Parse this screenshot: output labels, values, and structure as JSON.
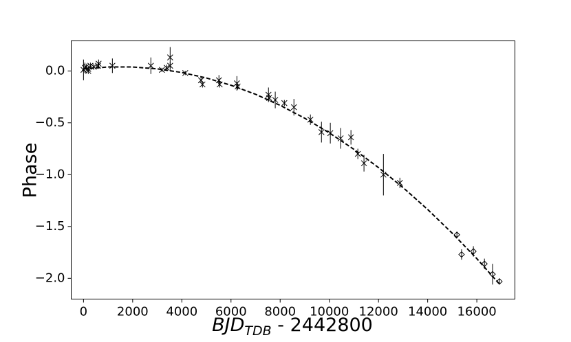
{
  "chart_data": {
    "type": "scatter",
    "ylabel": "Phase",
    "xlabel": {
      "main": "BJD",
      "sub": "TDB",
      "rest": " - 2442800"
    },
    "xlim": [
      -500,
      17550
    ],
    "ylim": [
      -2.2,
      0.29
    ],
    "xticks": [
      0,
      2000,
      4000,
      6000,
      8000,
      10000,
      12000,
      14000,
      16000
    ],
    "yticks": [
      {
        "value": 0,
        "label": "0.0"
      },
      {
        "value": -0.5,
        "label": "−0.5"
      },
      {
        "value": -1,
        "label": "−1.0"
      },
      {
        "value": -1.5,
        "label": "−1.5"
      },
      {
        "value": -2,
        "label": "−2.0"
      }
    ],
    "series": [
      {
        "marker": "x",
        "color": "#000000",
        "x": [
          0,
          55,
          110,
          195,
          280,
          420,
          590,
          195,
          615,
          1175,
          2740,
          3190,
          3385,
          3525,
          3525,
          4140,
          4780,
          4840,
          5510,
          5540,
          6240,
          6270,
          7525,
          7550,
          7800,
          8170,
          8560,
          9230,
          9680,
          10040,
          10460,
          10880,
          11160,
          11410,
          12200,
          12870
        ],
        "values": [
          0.01,
          0.03,
          0.04,
          0.02,
          0.05,
          0.04,
          0.05,
          0.0,
          0.07,
          0.05,
          0.05,
          0.01,
          0.03,
          0.13,
          0.05,
          -0.02,
          -0.09,
          -0.13,
          -0.09,
          -0.13,
          -0.12,
          -0.15,
          -0.23,
          -0.26,
          -0.28,
          -0.31,
          -0.35,
          -0.47,
          -0.59,
          -0.6,
          -0.65,
          -0.64,
          -0.8,
          -0.89,
          -1.0,
          -1.08
        ],
        "errors": [
          0.1,
          0.05,
          0.03,
          0.03,
          0.03,
          0.03,
          0.03,
          0.03,
          0.04,
          0.07,
          0.08,
          0.02,
          0.03,
          0.1,
          0.04,
          0.02,
          0.03,
          0.03,
          0.05,
          0.03,
          0.07,
          0.03,
          0.07,
          0.03,
          0.08,
          0.03,
          0.08,
          0.05,
          0.1,
          0.1,
          0.1,
          0.07,
          0.05,
          0.08,
          0.2,
          0.05
        ]
      },
      {
        "marker": "diamond",
        "color": "#000000",
        "x": [
          15190,
          15380,
          15860,
          16310,
          16640,
          16920
        ],
        "values": [
          -1.58,
          -1.77,
          -1.74,
          -1.86,
          -1.96,
          -2.03
        ],
        "errors": [
          0.03,
          0.05,
          0.05,
          0.05,
          0.1,
          0.03
        ]
      }
    ],
    "fit": {
      "style": "dashed",
      "color": "#000000",
      "x": [
        0,
        1000,
        2000,
        3000,
        4000,
        5000,
        6000,
        7000,
        8000,
        9000,
        10000,
        11000,
        12000,
        13000,
        14000,
        15000,
        16000,
        16900
      ],
      "values": [
        0.02,
        0.038,
        0.038,
        0.02,
        -0.015,
        -0.068,
        -0.138,
        -0.225,
        -0.332,
        -0.456,
        -0.597,
        -0.756,
        -0.932,
        -1.125,
        -1.336,
        -1.565,
        -1.81,
        -2.05
      ]
    }
  }
}
